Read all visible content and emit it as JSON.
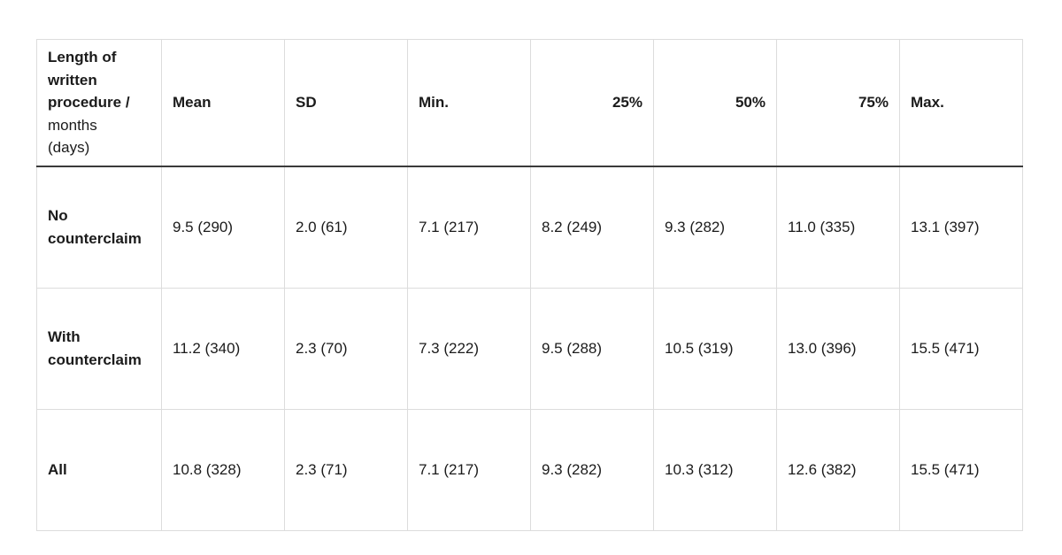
{
  "chart_data": {
    "type": "table",
    "title": "Length of written procedure / months (days)",
    "corner": {
      "bold": "Length of written procedure /",
      "normal": "months\n(days)"
    },
    "columns": [
      "Mean",
      "SD",
      "Min.",
      "25%",
      "50%",
      "75%",
      "Max."
    ],
    "rows": [
      {
        "label": "No counterclaim",
        "values": [
          "9.5 (290)",
          "2.0 (61)",
          "7.1 (217)",
          "8.2 (249)",
          "9.3 (282)",
          "11.0 (335)",
          "13.1 (397)"
        ]
      },
      {
        "label": "With counterclaim",
        "values": [
          "11.2 (340)",
          "2.3 (70)",
          "7.3 (222)",
          "9.5 (288)",
          "10.5 (319)",
          "13.0 (396)",
          "15.5 (471)"
        ]
      },
      {
        "label": "All",
        "values": [
          "10.8 (328)",
          "2.3 (71)",
          "7.1 (217)",
          "9.3 (282)",
          "10.3 (312)",
          "12.6 (382)",
          "15.5 (471)"
        ]
      }
    ],
    "layout_hints": {
      "right_aligned_columns": [
        "25%",
        "50%",
        "75%"
      ],
      "grid": true,
      "header_rule": "thick dark line under header row"
    }
  },
  "colors": {
    "background": "#ffffff",
    "text": "#1b1b1b",
    "grid_border": "#dcdcdc",
    "header_rule": "#3a3a3a"
  }
}
